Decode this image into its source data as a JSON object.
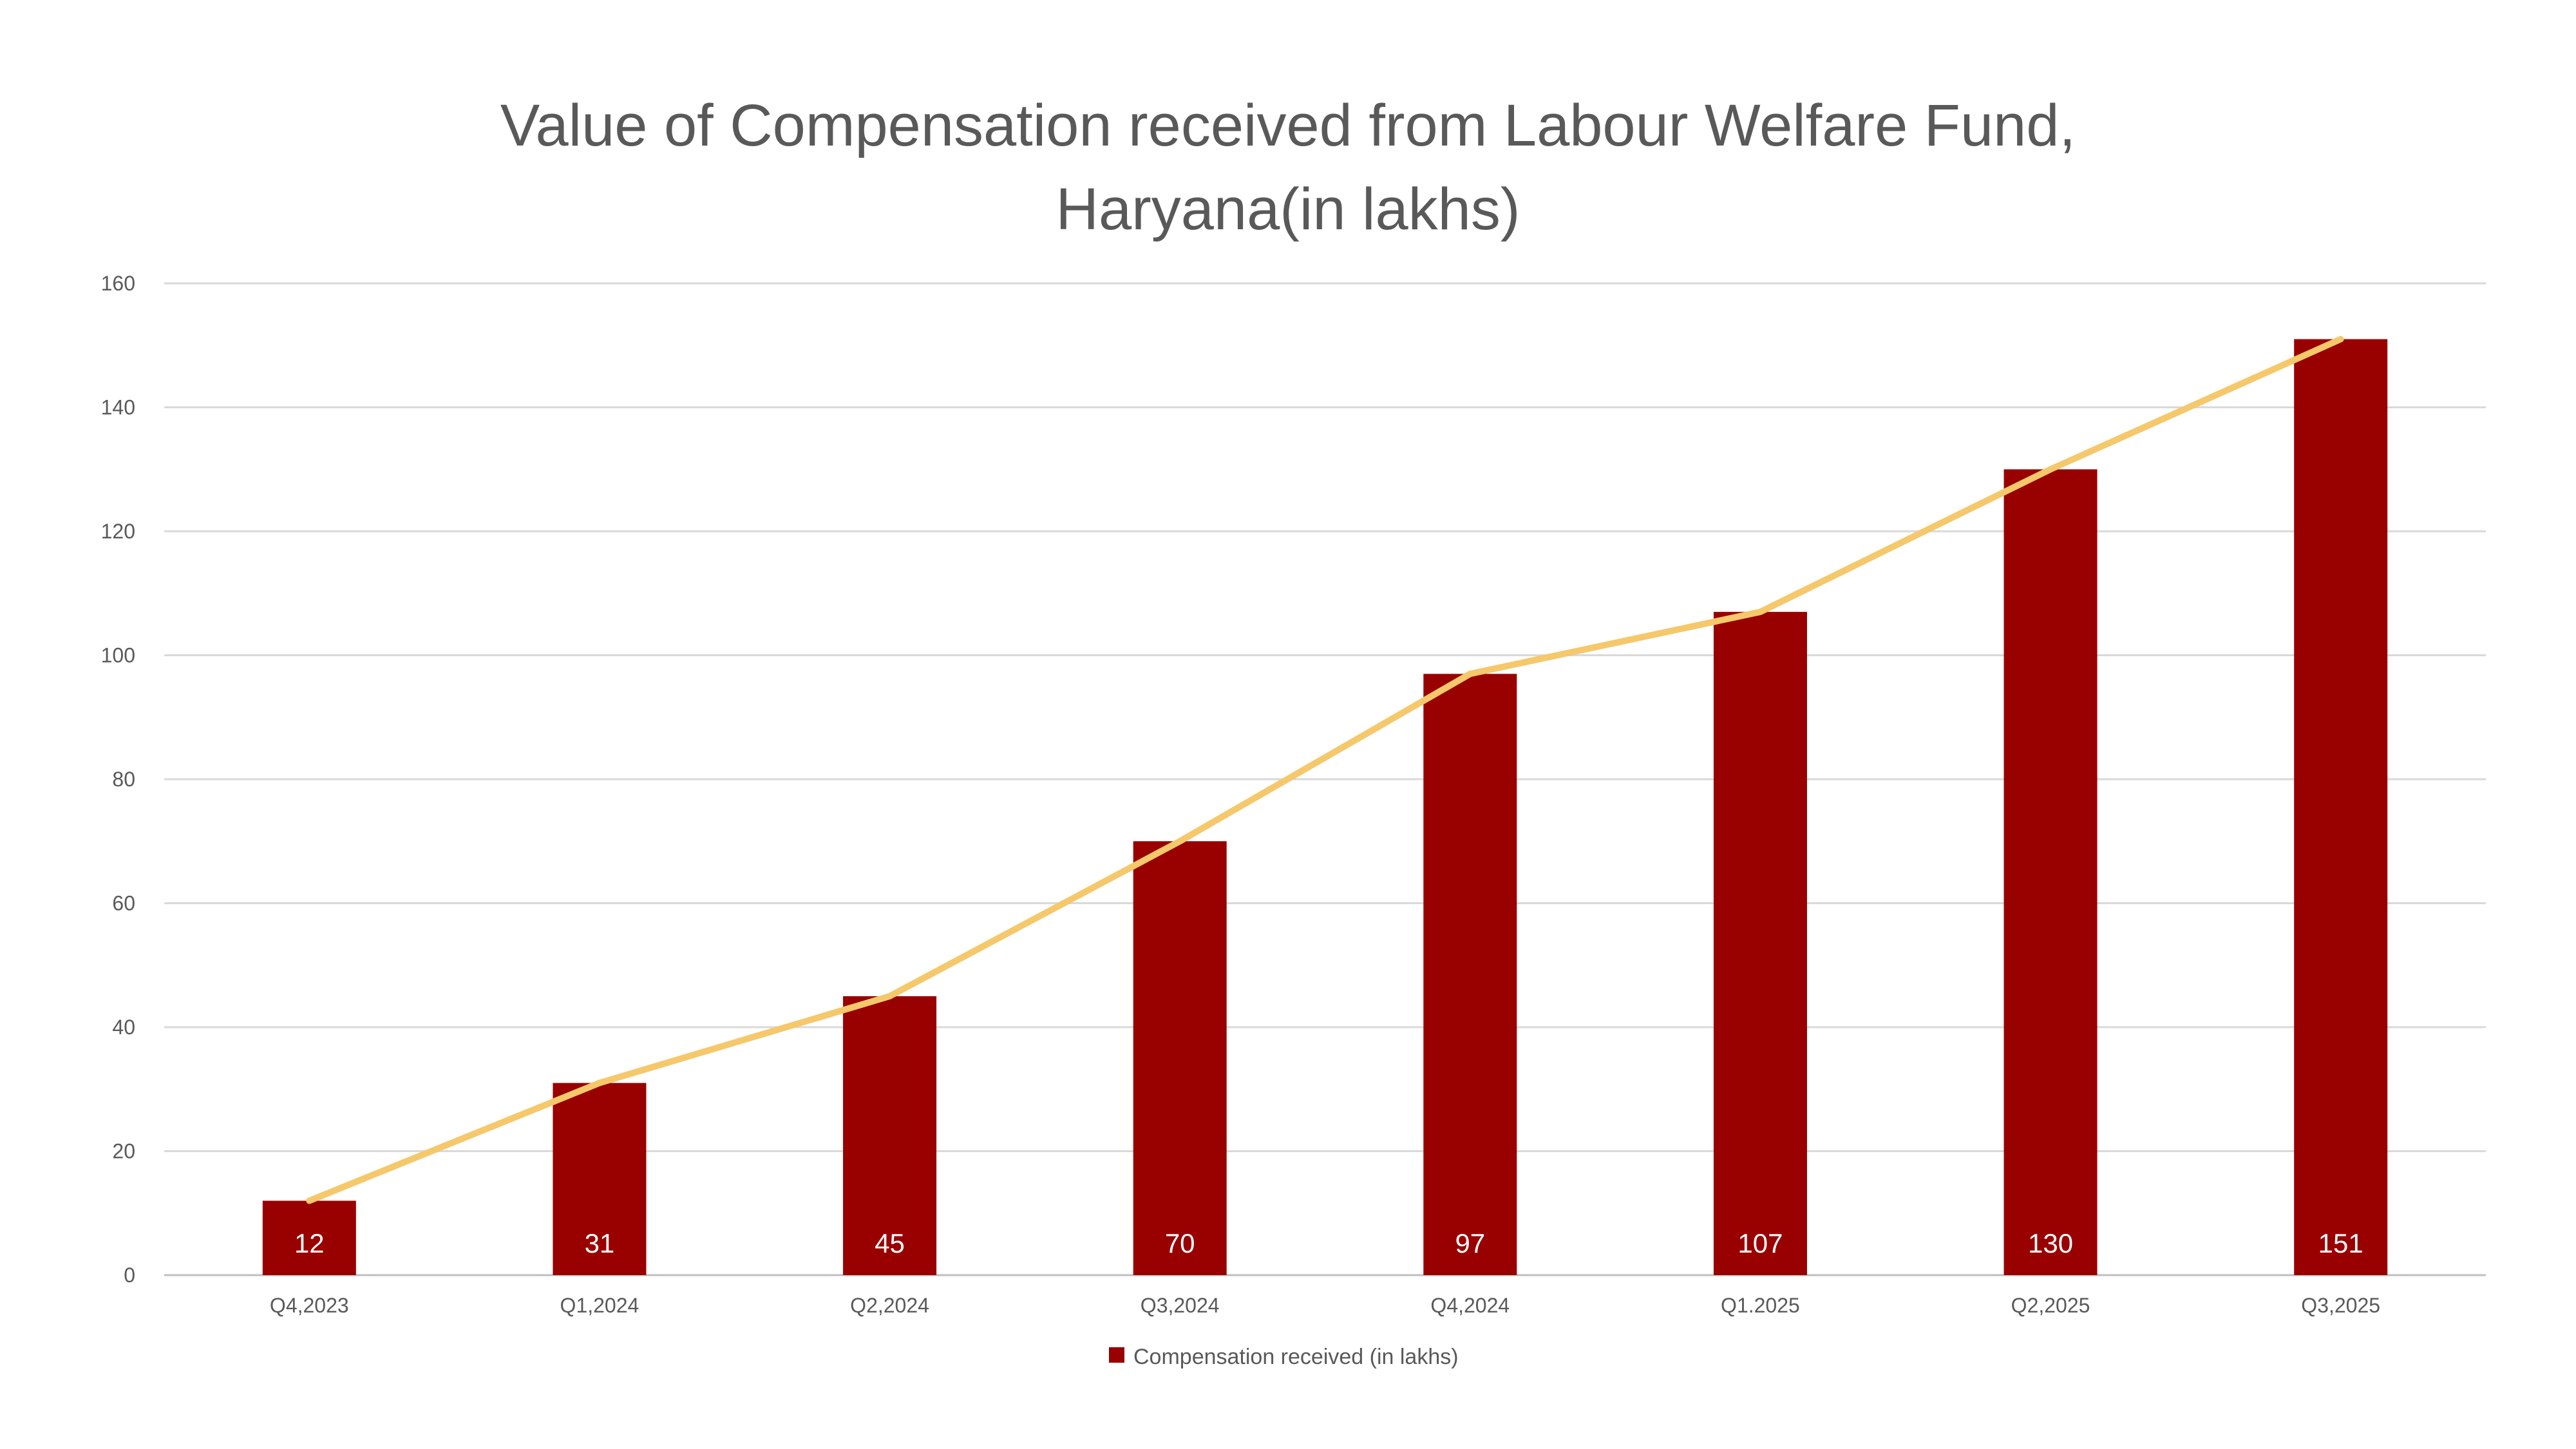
{
  "chart_data": {
    "type": "bar",
    "title_line1": "Value of Compensation received from Labour Welfare Fund,",
    "title_line2": "Haryana(in lakhs)",
    "categories": [
      "Q4,2023",
      "Q1,2024",
      "Q2,2024",
      "Q3,2024",
      "Q4,2024",
      "Q1.2025",
      "Q2,2025",
      "Q3,2025"
    ],
    "series": [
      {
        "name": "Compensation received (in lakhs)",
        "type": "bar",
        "color": "#990000",
        "values": [
          12,
          31,
          45,
          70,
          97,
          107,
          130,
          151
        ]
      },
      {
        "type": "line",
        "color": "#F5C86B",
        "values": [
          12,
          31,
          45,
          70,
          97,
          107,
          130,
          151
        ]
      }
    ],
    "data_labels": [
      "12",
      "31",
      "45",
      "70",
      "97",
      "107",
      "130",
      "151"
    ],
    "yticks": [
      "0",
      "20",
      "40",
      "60",
      "80",
      "100",
      "120",
      "140",
      "160"
    ],
    "ylim": [
      0,
      160
    ],
    "grid": true,
    "legend_position": "bottom",
    "gridline_color": "#D9D9D9",
    "axis_color": "#BFBFBF"
  }
}
